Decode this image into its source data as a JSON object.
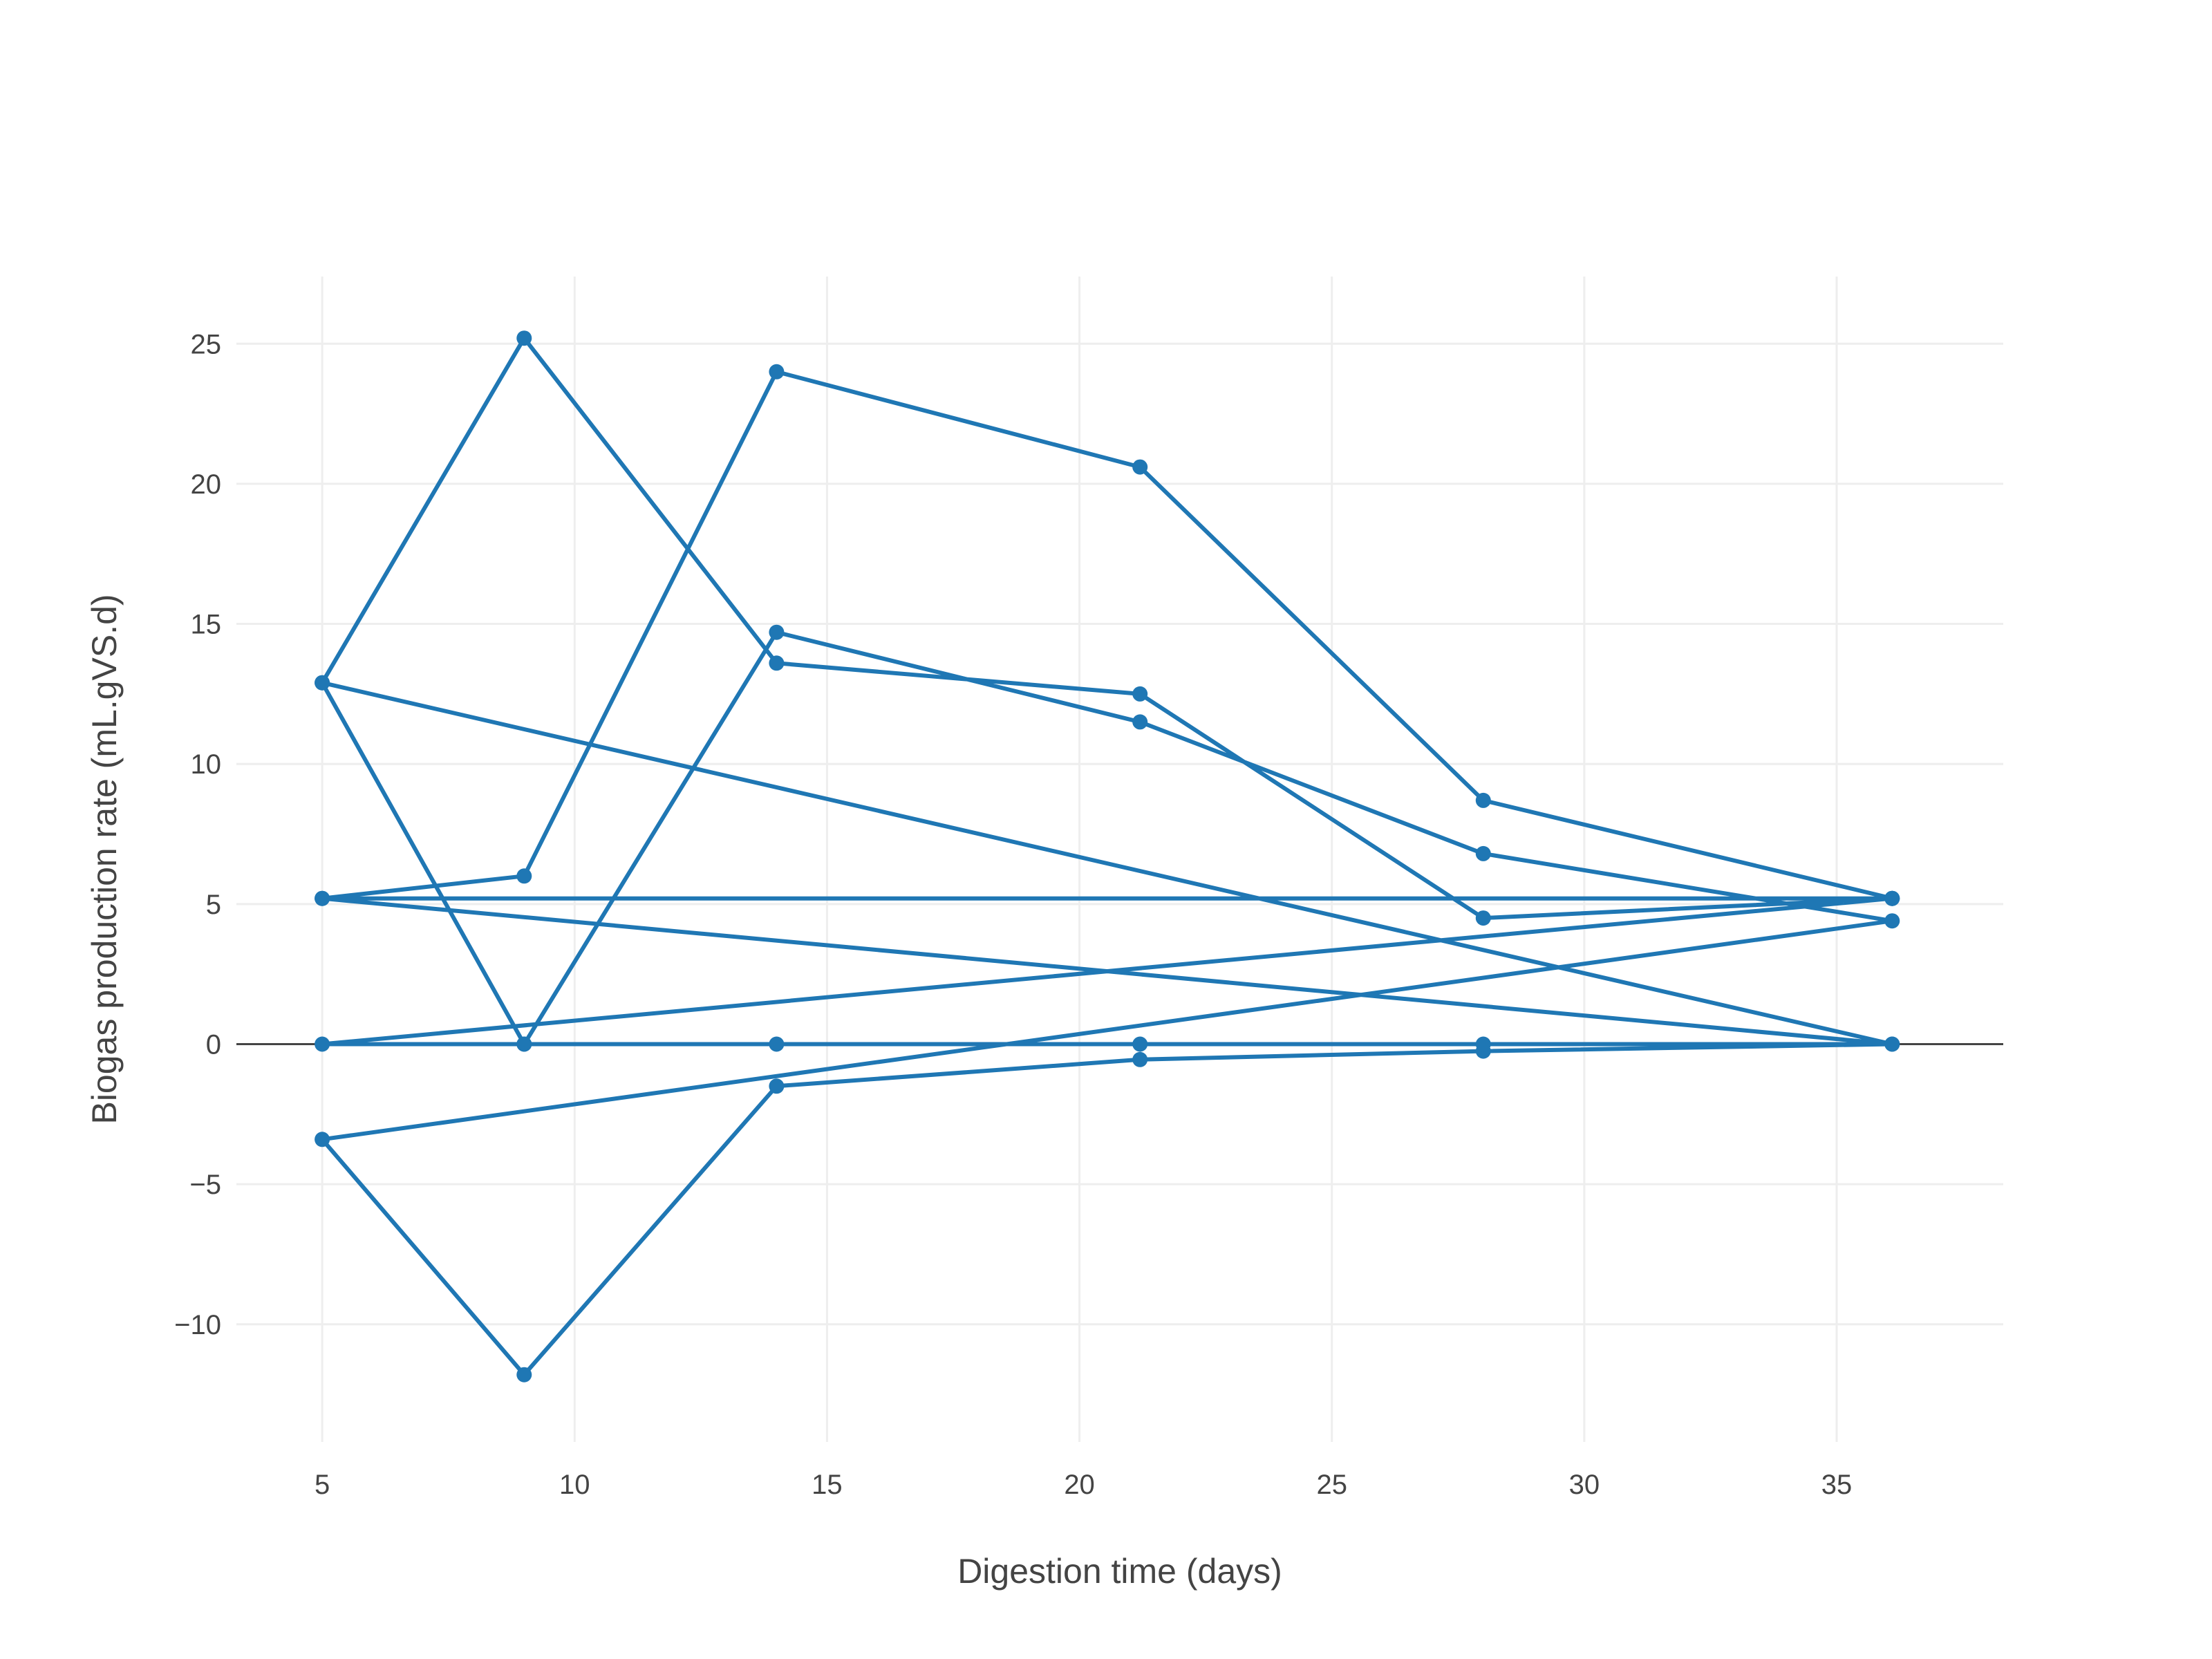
{
  "chart_data": {
    "type": "line",
    "title": "",
    "xlabel": "Digestion time (days)",
    "ylabel": "Biogas production rate (mL.gVS.d)",
    "xlim": [
      3.3,
      38.3
    ],
    "ylim": [
      -14.2,
      27.4
    ],
    "xticks": [
      5,
      10,
      15,
      20,
      25,
      30,
      35
    ],
    "yticks": [
      -10,
      -5,
      0,
      5,
      10,
      15,
      20,
      25
    ],
    "xtick_labels": [
      "5",
      "10",
      "15",
      "20",
      "25",
      "30",
      "35"
    ],
    "ytick_labels": [
      "−10",
      "−5",
      "0",
      "5",
      "10",
      "15",
      "20",
      "25"
    ],
    "grid": true,
    "zero_line": true,
    "line_color": "#1f77b4",
    "x": [
      5,
      9,
      14,
      21.2,
      28,
      36.1,
      5,
      9,
      14,
      21.2,
      28,
      36.1,
      5,
      9,
      14,
      21.2,
      28,
      36.1,
      5,
      9,
      14,
      21.2,
      28,
      36.1,
      5,
      9,
      14,
      21.2,
      28,
      36.1,
      5,
      36.1
    ],
    "y": [
      12.9,
      25.2,
      13.6,
      12.5,
      4.5,
      5.2,
      5.2,
      6.0,
      24.0,
      20.6,
      8.7,
      5.2,
      0,
      0,
      14.7,
      11.5,
      6.8,
      4.4,
      -3.4,
      -11.8,
      -1.5,
      -0.55,
      -0.25,
      0,
      12.9,
      0,
      0,
      0,
      0,
      0,
      5.2,
      5.2
    ]
  }
}
